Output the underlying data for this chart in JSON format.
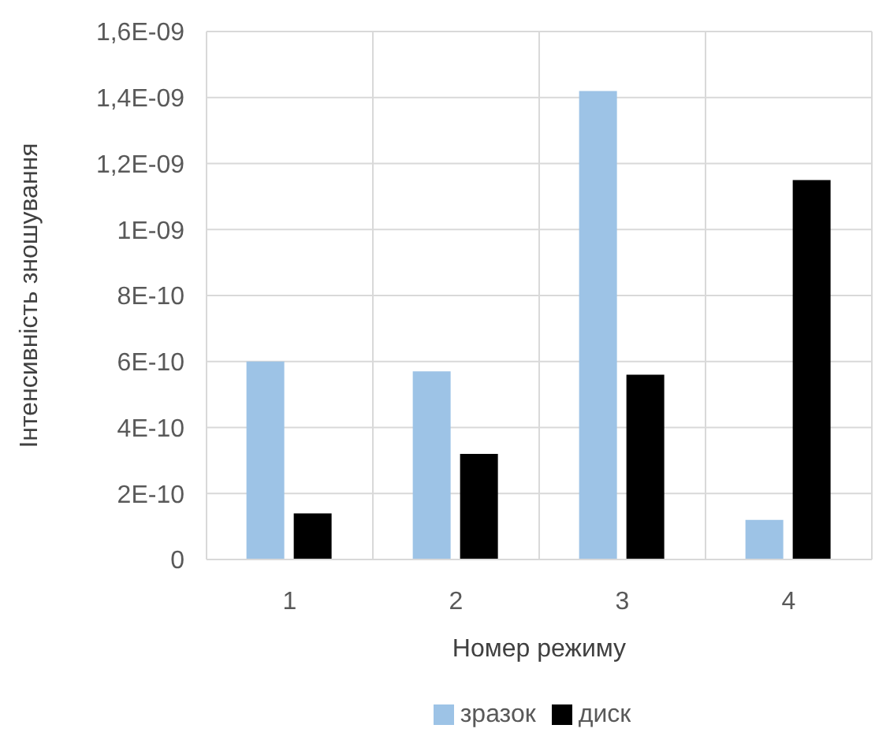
{
  "chart_data": {
    "type": "bar",
    "xlabel": "Номер режиму",
    "ylabel": "Інтенсивність зношування",
    "categories": [
      "1",
      "2",
      "3",
      "4"
    ],
    "series": [
      {
        "name": "зразок",
        "color": "#9dc3e6",
        "values": [
          6e-10,
          5.7e-10,
          1.42e-09,
          1.2e-10
        ]
      },
      {
        "name": "диск",
        "color": "#000000",
        "values": [
          1.4e-10,
          3.2e-10,
          5.6e-10,
          1.15e-09
        ]
      }
    ],
    "ylim": [
      0,
      1.6e-09
    ],
    "yticks": [
      {
        "value": 0,
        "label": "0"
      },
      {
        "value": 2e-10,
        "label": "2E-10"
      },
      {
        "value": 4e-10,
        "label": "4E-10"
      },
      {
        "value": 6e-10,
        "label": "6E-10"
      },
      {
        "value": 8e-10,
        "label": "8E-10"
      },
      {
        "value": 1e-09,
        "label": "1E-09"
      },
      {
        "value": 1.2e-09,
        "label": "1,2E-09"
      },
      {
        "value": 1.4e-09,
        "label": "1,4E-09"
      },
      {
        "value": 1.6e-09,
        "label": "1,6E-09"
      }
    ],
    "grid": true,
    "legend": "bottom"
  }
}
